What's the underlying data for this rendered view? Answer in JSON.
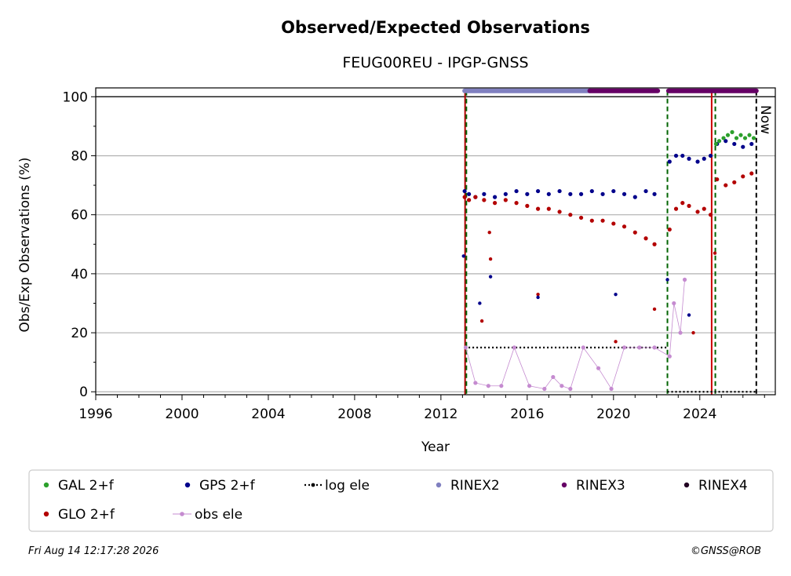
{
  "title": "Observed/Expected Observations",
  "subtitle": "FEUG00REU - IPGP-GNSS",
  "footer": {
    "timestamp": "Fri Aug 14 12:17:28 2026",
    "credit": "©GNSS@ROB"
  },
  "colors": {
    "gal": "#2ca02c",
    "gps": "#00008b",
    "glo": "#b30000",
    "obs_ele": "#c58bd0",
    "log_ele": "#000000",
    "rinex2": "#8080c0",
    "rinex3": "#660066",
    "rinex4": "#220022",
    "grid": "#b0b0b0"
  },
  "chart_data": {
    "type": "scatter",
    "title": "Observed/Expected Observations",
    "subtitle": "FEUG00REU - IPGP-GNSS",
    "xlabel": "Year",
    "ylabel": "Obs/Exp Observations (%)",
    "xlim": [
      1996,
      2027.5
    ],
    "ylim": [
      -1,
      103
    ],
    "xticks": [
      1996,
      2000,
      2004,
      2008,
      2012,
      2016,
      2020,
      2024
    ],
    "yticks": [
      0,
      20,
      40,
      60,
      80,
      100
    ],
    "grid": "horizontal",
    "legend_position": "bottom",
    "now_label": "Now",
    "now_year": 2026.62,
    "legend": [
      {
        "key": "gal",
        "label": "GAL 2+f",
        "style": "dot"
      },
      {
        "key": "gps",
        "label": "GPS 2+f",
        "style": "dot"
      },
      {
        "key": "log_ele",
        "label": "log ele",
        "style": "dotted-line"
      },
      {
        "key": "rinex2",
        "label": "RINEX2",
        "style": "dot"
      },
      {
        "key": "rinex3",
        "label": "RINEX3",
        "style": "dot"
      },
      {
        "key": "rinex4",
        "label": "RINEX4",
        "style": "dot"
      },
      {
        "key": "glo",
        "label": "GLO 2+f",
        "style": "dot"
      },
      {
        "key": "obs_ele",
        "label": "obs ele",
        "style": "line-dot"
      }
    ],
    "vertical_lines": [
      {
        "x": 2013.12,
        "color": "#b30000",
        "style": "solid"
      },
      {
        "x": 2013.18,
        "color": "#006400",
        "style": "dashed"
      },
      {
        "x": 2022.5,
        "color": "#006400",
        "style": "dashed"
      },
      {
        "x": 2024.55,
        "color": "#cc0000",
        "style": "solid"
      },
      {
        "x": 2024.72,
        "color": "#006400",
        "style": "dashed"
      },
      {
        "x": 2026.62,
        "color": "#000000",
        "style": "dashed"
      }
    ],
    "rinex_bars": [
      {
        "key": "rinex2",
        "x_start": 2013.1,
        "x_end": 2018.9,
        "y": 102
      },
      {
        "key": "rinex3",
        "x_start": 2018.9,
        "x_end": 2022.05,
        "y": 102
      },
      {
        "key": "rinex3",
        "x_start": 2022.55,
        "x_end": 2026.62,
        "y": 102
      }
    ],
    "log_ele_segments": [
      {
        "x_start": 2013.1,
        "x_end": 2022.5,
        "y": 15
      },
      {
        "x_start": 2022.5,
        "x_end": 2026.62,
        "y": 0
      }
    ],
    "series": [
      {
        "name": "GPS 2+f",
        "key": "gps",
        "x": [
          2013.1,
          2013.3,
          2013.6,
          2014.0,
          2014.5,
          2015.0,
          2015.5,
          2016.0,
          2016.5,
          2017.0,
          2017.5,
          2018.0,
          2018.5,
          2019.0,
          2019.5,
          2020.0,
          2020.5,
          2021.0,
          2021.5,
          2021.9,
          2022.6,
          2022.9,
          2023.2,
          2023.5,
          2023.9,
          2024.2,
          2024.5,
          2024.8,
          2025.2,
          2025.6,
          2026.0,
          2026.4
        ],
        "y": [
          68,
          67,
          66,
          67,
          66,
          67,
          68,
          67,
          68,
          67,
          68,
          67,
          67,
          68,
          67,
          68,
          67,
          66,
          68,
          67,
          78,
          80,
          80,
          79,
          78,
          79,
          80,
          84,
          85,
          84,
          83,
          84
        ]
      },
      {
        "name": "GLO 2+f",
        "key": "glo",
        "x": [
          2013.1,
          2013.3,
          2013.6,
          2014.0,
          2014.5,
          2015.0,
          2015.5,
          2016.0,
          2016.5,
          2017.0,
          2017.5,
          2018.0,
          2018.5,
          2019.0,
          2019.5,
          2020.0,
          2020.5,
          2021.0,
          2021.5,
          2021.9,
          2022.6,
          2022.9,
          2023.2,
          2023.5,
          2023.9,
          2024.2,
          2024.5,
          2024.8,
          2025.2,
          2025.6,
          2026.0,
          2026.4
        ],
        "y": [
          66,
          65,
          66,
          65,
          64,
          65,
          64,
          63,
          62,
          62,
          61,
          60,
          59,
          58,
          58,
          57,
          56,
          54,
          52,
          50,
          55,
          62,
          64,
          63,
          61,
          62,
          60,
          72,
          70,
          71,
          73,
          74
        ]
      },
      {
        "name": "GAL 2+f",
        "key": "gal",
        "x": [
          2024.75,
          2024.9,
          2025.1,
          2025.3,
          2025.5,
          2025.7,
          2025.9,
          2026.1,
          2026.3,
          2026.5
        ],
        "y": [
          84,
          85,
          86,
          87,
          88,
          86,
          87,
          86,
          87,
          86
        ]
      },
      {
        "name": "obs ele",
        "key": "obs_ele",
        "x": [
          2013.15,
          2013.6,
          2014.2,
          2014.8,
          2015.4,
          2016.1,
          2016.8,
          2017.2,
          2017.6,
          2018.0,
          2018.6,
          2019.3,
          2019.9,
          2020.5,
          2021.2,
          2021.9,
          2022.6,
          2022.8,
          2023.1,
          2023.3
        ],
        "y": [
          15,
          3,
          2,
          2,
          15,
          2,
          1,
          5,
          2,
          1,
          15,
          8,
          1,
          15,
          15,
          15,
          12,
          30,
          20,
          38
        ]
      }
    ],
    "outliers": [
      {
        "key": "gps",
        "x": 2013.05,
        "y": 46
      },
      {
        "key": "gps",
        "x": 2013.8,
        "y": 30
      },
      {
        "key": "glo",
        "x": 2013.9,
        "y": 24
      },
      {
        "key": "gps",
        "x": 2014.3,
        "y": 39
      },
      {
        "key": "glo",
        "x": 2014.3,
        "y": 45
      },
      {
        "key": "glo",
        "x": 2014.25,
        "y": 54
      },
      {
        "key": "glo",
        "x": 2016.5,
        "y": 33
      },
      {
        "key": "gps",
        "x": 2016.5,
        "y": 32
      },
      {
        "key": "gps",
        "x": 2020.1,
        "y": 33
      },
      {
        "key": "glo",
        "x": 2020.1,
        "y": 17
      },
      {
        "key": "glo",
        "x": 2021.9,
        "y": 28
      },
      {
        "key": "gps",
        "x": 2023.5,
        "y": 26
      },
      {
        "key": "glo",
        "x": 2023.7,
        "y": 20
      },
      {
        "key": "gps",
        "x": 2022.5,
        "y": 38
      },
      {
        "key": "glo",
        "x": 2024.7,
        "y": 47
      }
    ]
  }
}
